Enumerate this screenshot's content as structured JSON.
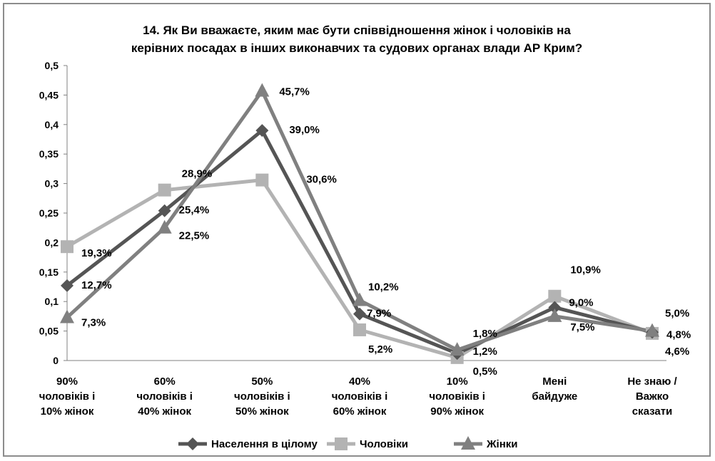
{
  "chart_data": {
    "type": "line",
    "title": "14. Як Ви вважаєте, яким має бути співвідношення жінок і чоловіків на керівних посадах в інших виконавчих та судових органах влади АР Крим?",
    "title_lines": [
      "14. Як Ви вважаєте, яким має бути співвідношення жінок і чоловіків на",
      "керівних посадах в інших виконавчих та судових органах влади АР Крим?"
    ],
    "categories": [
      [
        "90%",
        "чоловіків і",
        "10% жінок"
      ],
      [
        "60%",
        "чоловіків і",
        "40% жінок"
      ],
      [
        "50%",
        "чоловіків і",
        "50% жінок"
      ],
      [
        "40%",
        "чоловіків і",
        "60% жінок"
      ],
      [
        "10%",
        "чоловіків і",
        "90% жінок"
      ],
      [
        "Мені",
        "байдуже"
      ],
      [
        "Не знаю /",
        "Важко",
        "сказати"
      ]
    ],
    "ylim": [
      0,
      0.5
    ],
    "yticks": [
      0,
      0.05,
      0.1,
      0.15,
      0.2,
      0.25,
      0.3,
      0.35,
      0.4,
      0.45,
      0.5
    ],
    "ytick_labels": [
      "0",
      "0,05",
      "0,1",
      "0,15",
      "0,2",
      "0,25",
      "0,3",
      "0,35",
      "0,4",
      "0,45",
      "0,5"
    ],
    "legend_position": "bottom",
    "series": [
      {
        "name": "Населення в цілому",
        "marker": "diamond",
        "color": "#555555",
        "values": [
          0.127,
          0.254,
          0.39,
          0.079,
          0.012,
          0.09,
          0.048
        ],
        "labels": [
          "12,7%",
          "25,4%",
          "39,0%",
          "7,9%",
          "1,2%",
          "9,0%",
          "4,8%"
        ]
      },
      {
        "name": "Чоловіки",
        "marker": "square",
        "color": "#b3b3b3",
        "values": [
          0.193,
          0.289,
          0.306,
          0.052,
          0.005,
          0.109,
          0.046
        ],
        "labels": [
          "19,3%",
          "28,9%",
          "30,6%",
          "5,2%",
          "0,5%",
          "10,9%",
          "4,6%"
        ]
      },
      {
        "name": "Жінки",
        "marker": "triangle",
        "color": "#808080",
        "values": [
          0.073,
          0.225,
          0.457,
          0.102,
          0.018,
          0.075,
          0.05
        ],
        "labels": [
          "7,3%",
          "22,5%",
          "45,7%",
          "10,2%",
          "1,8%",
          "7,5%",
          "5,0%"
        ]
      }
    ]
  }
}
